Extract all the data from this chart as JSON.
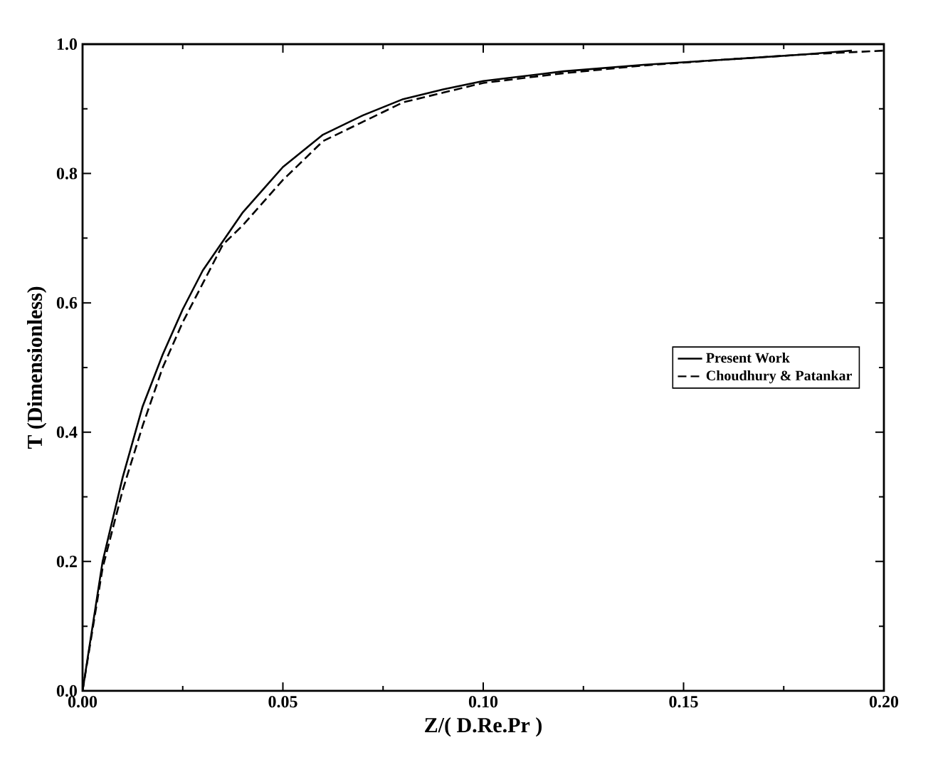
{
  "chart_data": {
    "type": "line",
    "xlabel": "Z/( D.Re.Pr )",
    "ylabel": "T (Dimensionless)",
    "xlim": [
      0,
      0.2
    ],
    "ylim": [
      0,
      1
    ],
    "xticks": [
      {
        "value": 0,
        "label": "0.00"
      },
      {
        "value": 0.05,
        "label": "0.05"
      },
      {
        "value": 0.1,
        "label": "0.10"
      },
      {
        "value": 0.15,
        "label": "0.15"
      },
      {
        "value": 0.2,
        "label": "0.20"
      }
    ],
    "yticks": [
      {
        "value": 0,
        "label": "0.0"
      },
      {
        "value": 0.2,
        "label": "0.2"
      },
      {
        "value": 0.4,
        "label": "0.4"
      },
      {
        "value": 0.6,
        "label": "0.6"
      },
      {
        "value": 0.8,
        "label": "0.8"
      },
      {
        "value": 1,
        "label": "1.0"
      }
    ],
    "grid": false,
    "legend": "right",
    "marker": "none",
    "series": [
      {
        "name": "Present Work",
        "color": "#000000",
        "line_style": "solid",
        "x": [
          0,
          0.005,
          0.01,
          0.015,
          0.02,
          0.025,
          0.03,
          0.04,
          0.05,
          0.06,
          0.07,
          0.08,
          0.09,
          0.1,
          0.12,
          0.14,
          0.16,
          0.18,
          0.192
        ],
        "values": [
          0,
          0.2,
          0.33,
          0.44,
          0.52,
          0.59,
          0.65,
          0.74,
          0.81,
          0.86,
          0.89,
          0.915,
          0.93,
          0.943,
          0.958,
          0.968,
          0.976,
          0.984,
          0.99
        ]
      },
      {
        "name": "Choudhury & Patankar",
        "color": "#000000",
        "line_style": "dashed",
        "x": [
          0,
          0.005,
          0.01,
          0.015,
          0.02,
          0.025,
          0.03,
          0.035,
          0.04,
          0.05,
          0.06,
          0.07,
          0.08,
          0.09,
          0.1,
          0.12,
          0.14,
          0.16,
          0.18,
          0.2
        ],
        "values": [
          0,
          0.19,
          0.31,
          0.41,
          0.5,
          0.57,
          0.63,
          0.69,
          0.72,
          0.79,
          0.85,
          0.88,
          0.91,
          0.925,
          0.94,
          0.955,
          0.967,
          0.976,
          0.984,
          0.99
        ]
      }
    ]
  }
}
